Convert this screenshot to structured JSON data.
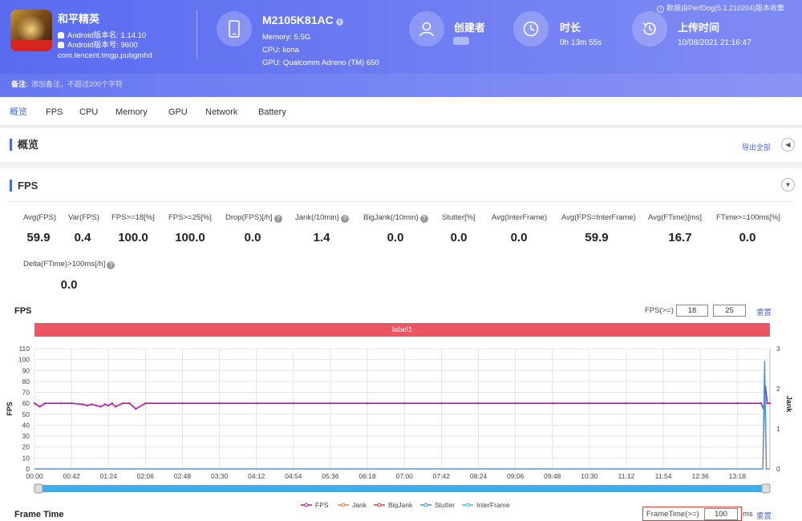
{
  "app": {
    "name": "和平精英",
    "android_version_name": "Android版本名: 1.14.10",
    "android_version_code": "Android版本号: 9600",
    "package": "com.tencent.tmgp.pubgmhd"
  },
  "device": {
    "model": "M2105K81AC",
    "memory": "Memory: 5.5G",
    "cpu": "CPU: kona",
    "gpu": "GPU: Qualcomm Adreno (TM) 650"
  },
  "creator": {
    "title": "创建者"
  },
  "duration": {
    "title": "时长",
    "value": "0h 13m 55s"
  },
  "upload": {
    "title": "上传时间",
    "value": "10/08/2021 21:16:47"
  },
  "collect_note": "数据由PerfDog(5.1.210204)版本收集",
  "remark": {
    "label": "备注:",
    "placeholder": "添加备注，不超过200个字符"
  },
  "tabs": [
    {
      "label": "概览"
    },
    {
      "label": "FPS"
    },
    {
      "label": "CPU"
    },
    {
      "label": "Memory"
    },
    {
      "label": "GPU"
    },
    {
      "label": "Network"
    },
    {
      "label": "Battery"
    }
  ],
  "overview": {
    "title": "概览",
    "export_label": "导出全部"
  },
  "fps_section": {
    "title": "FPS",
    "metrics": [
      {
        "label": "Avg(FPS)",
        "value": "59.9"
      },
      {
        "label": "Var(FPS)",
        "value": "0.4"
      },
      {
        "label": "FPS>=18[%]",
        "value": "100.0"
      },
      {
        "label": "FPS>=25[%]",
        "value": "100.0"
      },
      {
        "label": "Drop(FPS)[/h]",
        "value": "0.0"
      },
      {
        "label": "Jank(/10min)",
        "value": "1.4"
      },
      {
        "label": "BigJank(/10min)",
        "value": "0.0"
      },
      {
        "label": "Stutter[%]",
        "value": "0.0"
      },
      {
        "label": "Avg(InterFrame)",
        "value": "0.0"
      },
      {
        "label": "Avg(FPS=InterFrame)",
        "value": "59.9"
      },
      {
        "label": "Avg(FTime)[ms]",
        "value": "16.7"
      },
      {
        "label": "FTime>=100ms[%]",
        "value": "0.0"
      },
      {
        "label": "Delta(FTime)>100ms[/h]",
        "value": "0.0"
      }
    ],
    "chart_label": "FPS",
    "threshold_label": "FPS(>=)",
    "threshold_1": "18",
    "threshold_2": "25",
    "reset_label": "重置",
    "label_bar": "label1"
  },
  "frame_time": {
    "label": "Frame Time",
    "threshold_label": "FrameTime(>=)",
    "threshold": "100",
    "unit": "ms",
    "reset_label": "重置"
  },
  "chart_data": {
    "type": "line",
    "title": "",
    "ylabel": "FPS",
    "y2label": "Jank",
    "ylim": [
      0,
      110
    ],
    "y2lim": [
      0,
      3
    ],
    "yticks": [
      0,
      10,
      20,
      30,
      40,
      50,
      60,
      70,
      80,
      90,
      100,
      110
    ],
    "y2ticks": [
      0,
      1,
      2,
      3
    ],
    "xlim": [
      "00:00",
      "13:55"
    ],
    "xticks": [
      "00:00",
      "00:42",
      "01:24",
      "02:06",
      "02:48",
      "03:30",
      "04:12",
      "04:54",
      "05:36",
      "06:18",
      "07:00",
      "07:42",
      "08:24",
      "09:06",
      "09:48",
      "10:30",
      "11:12",
      "11:54",
      "12:36",
      "13:18"
    ],
    "grid": true,
    "legend_position": "bottom",
    "legend": [
      "FPS",
      "Jank",
      "BigJank",
      "Stutter",
      "InterFrame"
    ],
    "colors": {
      "FPS": "#b5179e",
      "Jank": "#f07f2a",
      "BigJank": "#e53935",
      "Stutter": "#3d8ee8",
      "InterFrame": "#3cc6e0"
    },
    "series": [
      {
        "name": "FPS",
        "axis": "left",
        "x": [
          "00:00",
          "00:06",
          "00:12",
          "00:30",
          "00:42",
          "00:55",
          "01:00",
          "01:05",
          "01:10",
          "01:15",
          "01:20",
          "01:24",
          "01:28",
          "01:32",
          "01:40",
          "01:48",
          "01:55",
          "02:06",
          "02:48",
          "03:30",
          "04:12",
          "04:54",
          "05:36",
          "06:18",
          "07:00",
          "07:42",
          "08:24",
          "09:06",
          "09:48",
          "10:30",
          "11:12",
          "11:54",
          "12:36",
          "13:18",
          "13:45",
          "13:48",
          "13:50",
          "13:52",
          "13:55"
        ],
        "values": [
          60,
          57,
          60,
          60,
          60,
          59,
          58,
          59,
          58,
          57,
          59,
          58,
          60,
          57,
          60,
          60,
          55,
          60,
          60,
          60,
          60,
          60,
          60,
          60,
          60,
          60,
          60,
          60,
          60,
          60,
          60,
          60,
          60,
          60,
          60,
          55,
          75,
          60,
          60
        ]
      },
      {
        "name": "Jank",
        "axis": "right",
        "x": [
          "00:00",
          "13:47",
          "13:49",
          "13:51",
          "13:55"
        ],
        "values": [
          0,
          0,
          2,
          0,
          0
        ]
      },
      {
        "name": "Stutter",
        "axis": "right",
        "x": [
          "00:00",
          "13:47",
          "13:49",
          "13:51",
          "13:55"
        ],
        "values": [
          0,
          0,
          2.7,
          0,
          0
        ]
      }
    ]
  }
}
